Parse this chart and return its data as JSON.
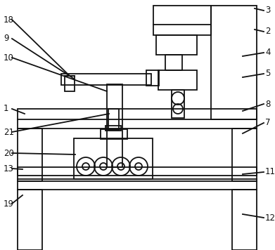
{
  "bg_color": "#ffffff",
  "line_color": "#111111",
  "lw": 1.3,
  "thin": 0.75,
  "label_fs": 8.5,
  "figsize": [
    3.91,
    3.56
  ],
  "dpi": 100
}
